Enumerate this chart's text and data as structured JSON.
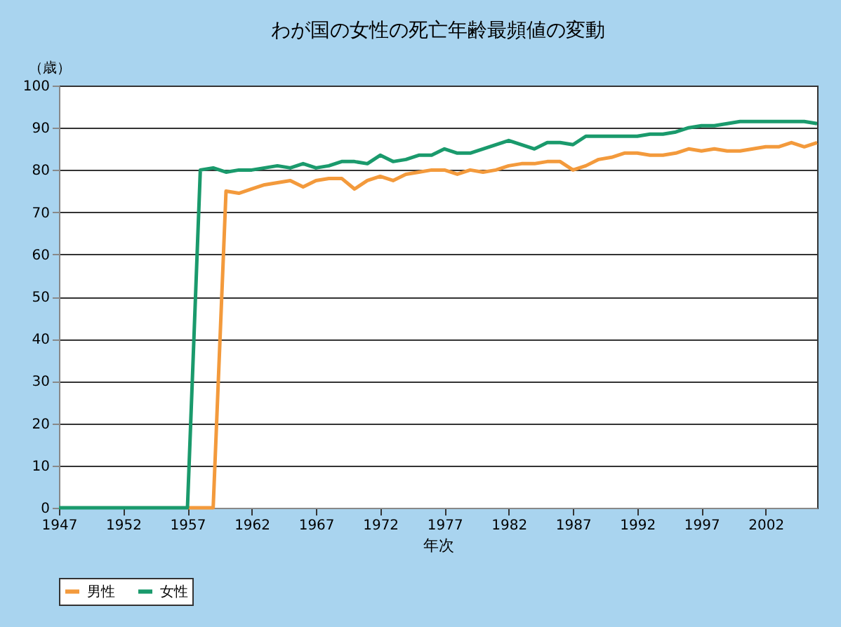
{
  "chart_data": {
    "type": "line",
    "title": "わが国の女性の死亡年齢最頻値の変動",
    "xlabel": "年次",
    "ylabel": "（歳）",
    "x": [
      1947,
      1948,
      1949,
      1950,
      1951,
      1952,
      1953,
      1954,
      1955,
      1956,
      1957,
      1958,
      1959,
      1960,
      1961,
      1962,
      1963,
      1964,
      1965,
      1966,
      1967,
      1968,
      1969,
      1970,
      1971,
      1972,
      1973,
      1974,
      1975,
      1976,
      1977,
      1978,
      1979,
      1980,
      1981,
      1982,
      1983,
      1984,
      1985,
      1986,
      1987,
      1988,
      1989,
      1990,
      1991,
      1992,
      1993,
      1994,
      1995,
      1996,
      1997,
      1998,
      1999,
      2000,
      2001,
      2002,
      2003,
      2004,
      2005,
      2006
    ],
    "series": [
      {
        "name": "男性",
        "color": "#f39a3c",
        "values": [
          null,
          null,
          null,
          null,
          null,
          null,
          null,
          null,
          null,
          null,
          0,
          0,
          0,
          75,
          74.5,
          75.5,
          76.5,
          77,
          77.5,
          76,
          77.5,
          78,
          78,
          75.5,
          77.5,
          78.5,
          77.5,
          79,
          79.5,
          80,
          80,
          79,
          80,
          79.5,
          80,
          81,
          81.5,
          81.5,
          82,
          82,
          80,
          81,
          82.5,
          83,
          84,
          84,
          83.5,
          83.5,
          84,
          85,
          84.5,
          85,
          84.5,
          84.5,
          85,
          85.5,
          85.5,
          86.5,
          85.5,
          86.5
        ]
      },
      {
        "name": "女性",
        "color": "#1a9a6c",
        "values": [
          0,
          0,
          0,
          0,
          0,
          0,
          0,
          0,
          0,
          0,
          0,
          80,
          80.5,
          79.5,
          80,
          80,
          80.5,
          81,
          80.5,
          81.5,
          80.5,
          81,
          82,
          82,
          81.5,
          83.5,
          82,
          82.5,
          83.5,
          83.5,
          85,
          84,
          84,
          85,
          86,
          87,
          86,
          85,
          86.5,
          86.5,
          86,
          88,
          88,
          88,
          88,
          88,
          88.5,
          88.5,
          89,
          90,
          90.5,
          90.5,
          91,
          91.5,
          91.5,
          91.5,
          91.5,
          91.5,
          91.5,
          91
        ]
      }
    ],
    "xlim": [
      1947,
      2006
    ],
    "xticks": [
      1947,
      1952,
      1957,
      1962,
      1967,
      1972,
      1977,
      1982,
      1987,
      1992,
      1997,
      2002
    ],
    "ylim": [
      0,
      100
    ],
    "yticks": [
      0,
      10,
      20,
      30,
      40,
      50,
      60,
      70,
      80,
      90,
      100
    ],
    "grid": "y",
    "legend": "bottom",
    "marker": "none",
    "line_style": "solid"
  }
}
